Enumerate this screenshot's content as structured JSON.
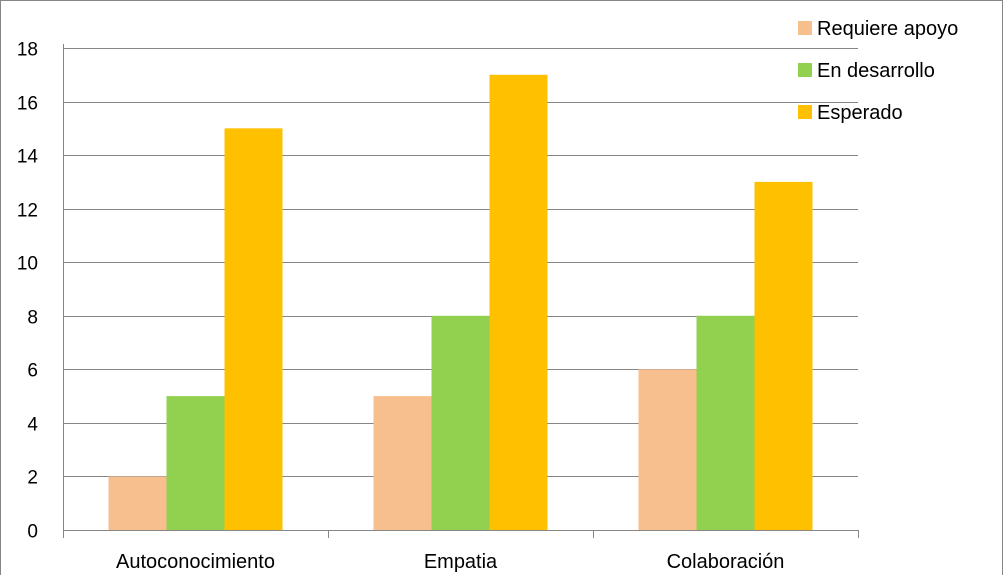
{
  "chart_data": {
    "type": "bar",
    "title": "",
    "xlabel": "",
    "ylabel": "",
    "categories": [
      "Autoconocimiento",
      "Empatia",
      "Colaboración"
    ],
    "series": [
      {
        "name": "Requiere apoyo",
        "color": "#F8BF8E",
        "values": [
          2,
          5,
          6
        ]
      },
      {
        "name": "En desarrollo",
        "color": "#92D050",
        "values": [
          5,
          8,
          8
        ]
      },
      {
        "name": "Esperado",
        "color": "#FFC000",
        "values": [
          15,
          17,
          13
        ]
      }
    ],
    "ylim": [
      0,
      18
    ],
    "yticks": [
      "0",
      "2",
      "4",
      "6",
      "8",
      "10",
      "12",
      "14",
      "16",
      "18"
    ],
    "grid": true,
    "legend_position": "top-right"
  }
}
